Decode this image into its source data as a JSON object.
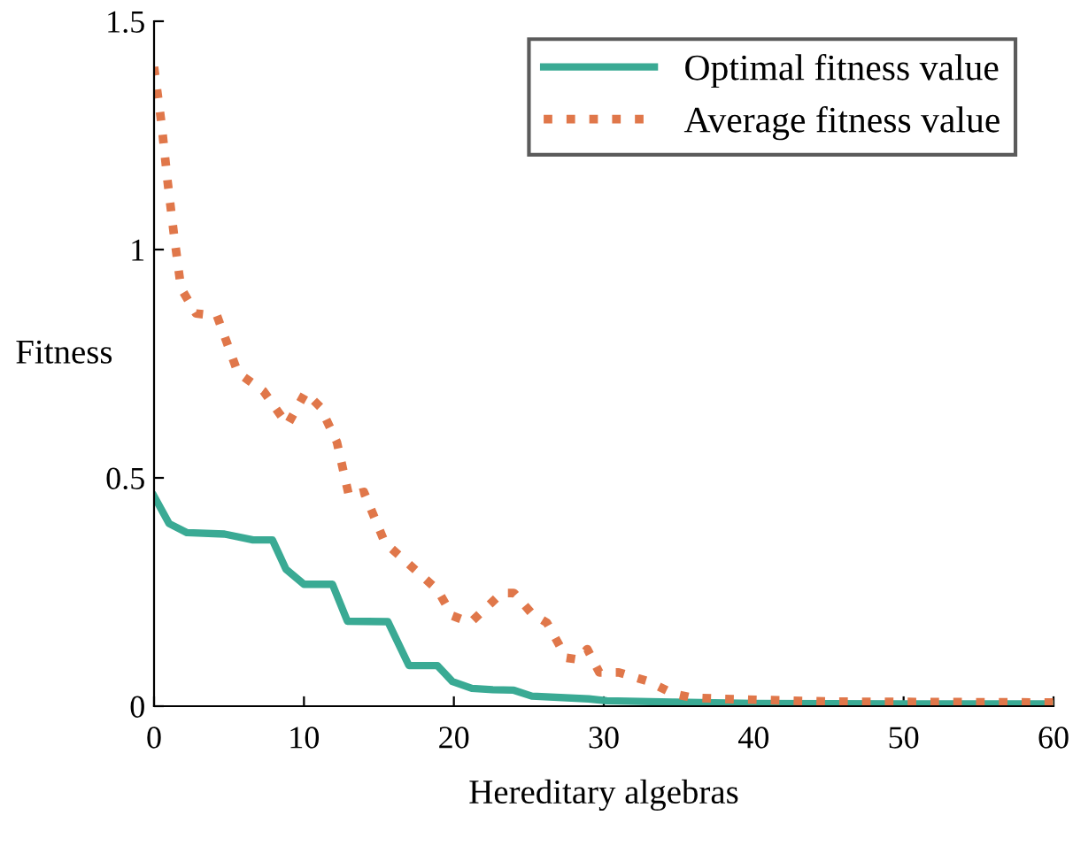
{
  "chart_data": {
    "type": "line",
    "xlabel": "Hereditary algebras",
    "ylabel": "Fitness",
    "xlim": [
      0,
      60
    ],
    "xticks": [
      0,
      10,
      20,
      30,
      40,
      50,
      60
    ],
    "ylim": [
      0,
      1.5
    ],
    "yticks": [
      0,
      0.5,
      1,
      1.5
    ],
    "grid": false,
    "legend": "top right",
    "marker": "none",
    "series": [
      {
        "name": "Optimal fitness value",
        "color": "#3aaa94",
        "line_style": "solid",
        "x": [
          0,
          1,
          2.2,
          4.7,
          6.6,
          7.9,
          8.8,
          10,
          11.9,
          12.9,
          15.6,
          17,
          18.9,
          19.9,
          21.2,
          22.6,
          24,
          25.2,
          29,
          30.2,
          34.6,
          40,
          50,
          60
        ],
        "values": [
          0.46,
          0.4,
          0.38,
          0.377,
          0.364,
          0.364,
          0.3,
          0.267,
          0.267,
          0.186,
          0.185,
          0.089,
          0.089,
          0.054,
          0.039,
          0.036,
          0.035,
          0.022,
          0.016,
          0.012,
          0.009,
          0.006,
          0.005,
          0.005
        ]
      },
      {
        "name": "Average fitness value",
        "color": "#e0774a",
        "line_style": "dotted",
        "x": [
          0,
          0.5,
          0.9,
          1.3,
          1.8,
          2.8,
          4.2,
          5.6,
          7.3,
          8.9,
          10.1,
          11.1,
          12.2,
          13,
          14,
          15.4,
          16.5,
          18.9,
          19.9,
          21.1,
          23.2,
          24,
          25.2,
          26.2,
          27.5,
          28.3,
          28.9,
          29.7,
          31,
          33,
          34.6,
          35.8,
          37.9,
          45,
          60
        ],
        "values": [
          1.4,
          1.275,
          1.15,
          1.04,
          0.915,
          0.86,
          0.855,
          0.73,
          0.69,
          0.616,
          0.687,
          0.655,
          0.578,
          0.461,
          0.469,
          0.358,
          0.326,
          0.255,
          0.198,
          0.183,
          0.248,
          0.248,
          0.203,
          0.183,
          0.106,
          0.102,
          0.125,
          0.074,
          0.074,
          0.054,
          0.028,
          0.019,
          0.016,
          0.01,
          0.008
        ]
      }
    ]
  }
}
